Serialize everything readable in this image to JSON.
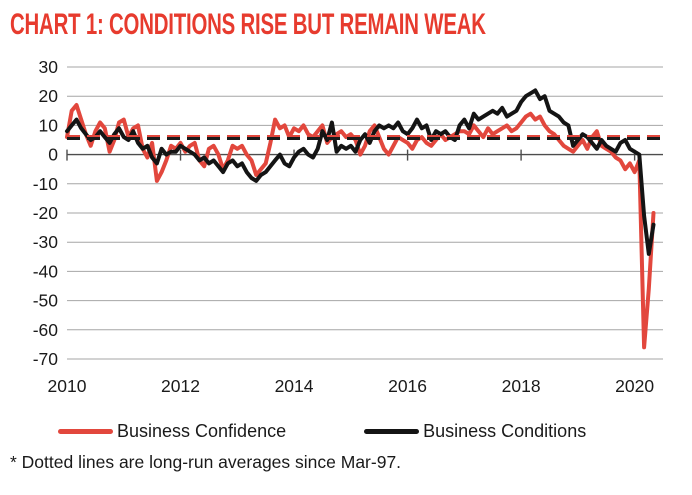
{
  "title": "CHART 1: CONDITIONS RISE BUT REMAIN WEAK",
  "footnote": "* Dotted lines are long-run averages since Mar-97.",
  "legend": [
    {
      "label": "Business Confidence",
      "color": "#e2473d"
    },
    {
      "label": "Business Conditions",
      "color": "#141414"
    }
  ],
  "colors": {
    "title": "#e73b2e",
    "confidence": "#e2473d",
    "conditions": "#141414",
    "gridline": "#a6a6a6",
    "zero_line": "#4d4d4d",
    "text": "#1a1a1a"
  },
  "chart_data": {
    "type": "line",
    "title": "CHART 1: CONDITIONS RISE BUT REMAIN WEAK",
    "x_start_year": 2010,
    "x_start_month": 1,
    "x_frequency": "monthly",
    "x_tick_labels": [
      "2010",
      "2012",
      "2014",
      "2016",
      "2018",
      "2020"
    ],
    "x_tick_years": [
      2010,
      2012,
      2014,
      2016,
      2018,
      2020
    ],
    "x_domain_years": [
      2010.0,
      2020.5
    ],
    "ylim": [
      -70,
      30
    ],
    "y_ticks": [
      30,
      20,
      10,
      0,
      -10,
      -20,
      -30,
      -40,
      -50,
      -60,
      -70
    ],
    "grid": "horizontal",
    "legend_position": "bottom",
    "series": [
      {
        "name": "Business Confidence",
        "color": "#e2473d",
        "values": [
          6,
          15,
          17,
          12,
          7,
          3,
          8,
          11,
          9,
          1,
          5,
          11,
          12,
          6,
          9,
          10,
          2,
          -1,
          4,
          -9,
          -6,
          -2,
          3,
          2,
          4,
          1,
          3,
          4,
          -2,
          -4,
          2,
          3,
          0,
          -5,
          -2,
          3,
          2,
          3,
          0,
          -2,
          -7,
          -5,
          -3,
          4,
          12,
          9,
          10,
          6,
          9,
          8,
          10,
          7,
          6,
          8,
          10,
          4,
          6,
          7,
          8,
          6,
          7,
          5,
          0,
          3,
          8,
          10,
          6,
          2,
          0,
          3,
          6,
          5,
          4,
          2,
          5,
          6,
          4,
          3,
          5,
          7,
          5,
          6,
          7,
          8,
          8,
          7,
          10,
          8,
          6,
          9,
          7,
          8,
          9,
          10,
          8,
          9,
          11,
          13,
          14,
          12,
          13,
          10,
          8,
          7,
          5,
          3,
          2,
          1,
          3,
          5,
          2,
          6,
          8,
          3,
          2,
          1,
          -1,
          -2,
          -5,
          -3,
          -6,
          -2,
          -66,
          -46,
          -20
        ]
      },
      {
        "name": "Business Conditions",
        "color": "#141414",
        "values": [
          8,
          10,
          12,
          9,
          7,
          5,
          6,
          8,
          6,
          4,
          7,
          9,
          6,
          5,
          8,
          4,
          2,
          3,
          -1,
          -3,
          2,
          0,
          1,
          1,
          3,
          2,
          1,
          0,
          -2,
          -1,
          -3,
          -2,
          -4,
          -6,
          -3,
          -2,
          -4,
          -3,
          -6,
          -8,
          -9,
          -7,
          -6,
          -4,
          -2,
          0,
          -3,
          -4,
          -1,
          1,
          2,
          0,
          -1,
          2,
          8,
          5,
          11,
          1,
          3,
          2,
          3,
          1,
          5,
          7,
          4,
          8,
          10,
          9,
          10,
          9,
          11,
          8,
          7,
          9,
          12,
          9,
          10,
          5,
          8,
          7,
          8,
          6,
          5,
          10,
          12,
          9,
          14,
          12,
          13,
          14,
          15,
          14,
          16,
          13,
          14,
          15,
          18,
          20,
          21,
          22,
          19,
          20,
          15,
          14,
          13,
          11,
          10,
          3,
          5,
          7,
          6,
          4,
          2,
          5,
          3,
          2,
          1,
          4,
          5,
          2,
          1,
          0,
          -21,
          -34,
          -24
        ]
      }
    ],
    "reference_lines": [
      {
        "name": "Business Confidence long-run average since Mar-97",
        "value": 6.2,
        "style": "dashed",
        "color": "#e2473d"
      },
      {
        "name": "Business Conditions long-run average since Mar-97",
        "value": 5.5,
        "style": "dashed",
        "color": "#1a1a1a"
      }
    ]
  }
}
